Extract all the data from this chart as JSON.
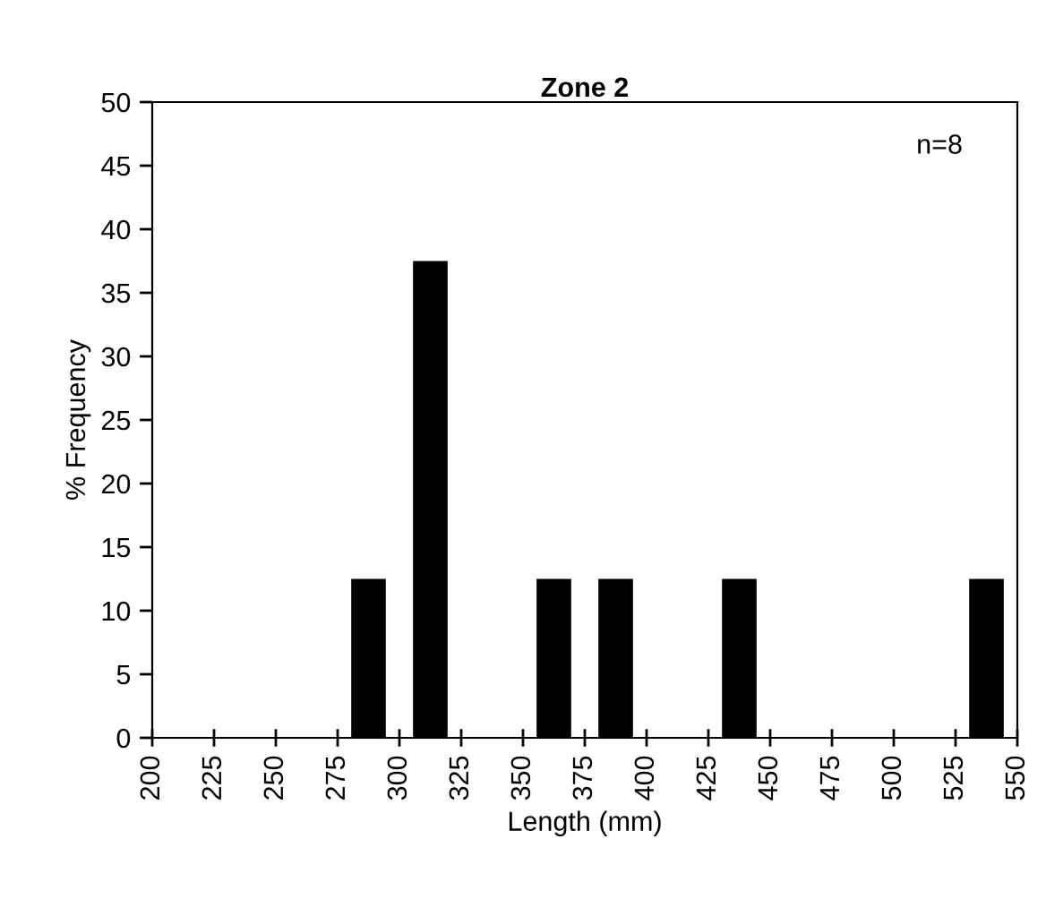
{
  "chart_data": {
    "type": "histogram",
    "title": "Zone 2",
    "xlabel": "Length (mm)",
    "ylabel": "% Frequency",
    "bins": [
      200,
      225,
      250,
      275,
      300,
      325,
      350,
      375,
      400,
      425,
      450,
      475,
      500,
      525,
      550
    ],
    "values": [
      0,
      0,
      0,
      12.5,
      37.5,
      0,
      12.5,
      12.5,
      0,
      12.5,
      0,
      0,
      0,
      12.5
    ],
    "color": "#000000",
    "xlim": [
      200,
      550
    ],
    "xticks": [
      200,
      225,
      250,
      275,
      300,
      325,
      350,
      375,
      400,
      425,
      450,
      475,
      500,
      525,
      550
    ],
    "ylim": [
      0,
      50
    ],
    "yticks": [
      0,
      5,
      10,
      15,
      20,
      25,
      30,
      35,
      40,
      45,
      50
    ],
    "annotations": [
      "n=8"
    ],
    "grid": false,
    "legend": false
  }
}
